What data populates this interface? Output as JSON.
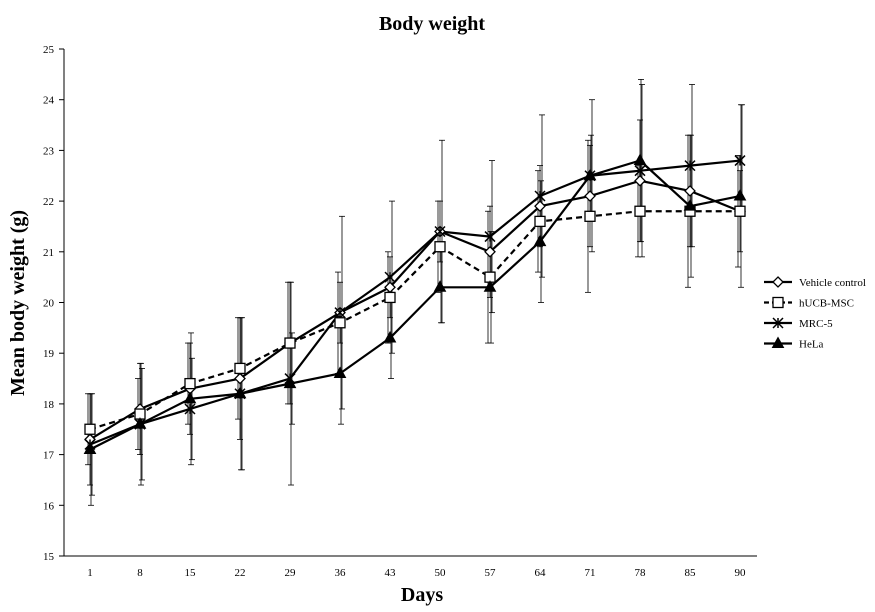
{
  "chart_data": {
    "type": "line",
    "title": "Body weight",
    "xlabel": "Days",
    "ylabel": "Mean body weight (g)",
    "categories": [
      "1",
      "8",
      "15",
      "22",
      "29",
      "36",
      "43",
      "50",
      "57",
      "64",
      "71",
      "78",
      "85",
      "90"
    ],
    "ylim": [
      15,
      25
    ],
    "yticks": [
      15,
      16,
      17,
      18,
      19,
      20,
      21,
      22,
      23,
      24,
      25
    ],
    "grid": false,
    "legend_position": "right",
    "series": [
      {
        "name": "Vehicle control",
        "marker": "diamond",
        "dash": "solid",
        "values": [
          17.3,
          17.9,
          18.3,
          18.5,
          19.2,
          19.8,
          20.3,
          21.4,
          21.0,
          21.9,
          22.1,
          22.4,
          22.2,
          21.8
        ],
        "errors": [
          0.9,
          0.9,
          0.9,
          1.2,
          1.2,
          0.6,
          0.6,
          0.6,
          0.9,
          0.8,
          1.0,
          1.2,
          1.1,
          0.8
        ]
      },
      {
        "name": "hUCB-MSC",
        "marker": "square",
        "dash": "dashed",
        "values": [
          17.5,
          17.8,
          18.4,
          18.7,
          19.2,
          19.6,
          20.1,
          21.1,
          20.5,
          21.6,
          21.7,
          21.8,
          21.8,
          21.8
        ],
        "errors": [
          0.7,
          0.7,
          0.8,
          1.0,
          1.2,
          1.0,
          0.9,
          0.9,
          1.3,
          1.0,
          1.5,
          0.9,
          1.5,
          1.1
        ]
      },
      {
        "name": "MRC-5",
        "marker": "star",
        "dash": "solid",
        "values": [
          17.2,
          17.6,
          17.9,
          18.2,
          18.5,
          19.8,
          20.5,
          21.4,
          21.3,
          22.1,
          22.5,
          22.6,
          22.7,
          22.8
        ],
        "errors": [
          1.0,
          1.1,
          1.0,
          1.5,
          0.9,
          1.9,
          1.5,
          1.8,
          1.5,
          1.6,
          1.5,
          1.7,
          1.6,
          1.1
        ]
      },
      {
        "name": "HeLa",
        "marker": "triangle",
        "dash": "solid",
        "values": [
          17.1,
          17.6,
          18.1,
          18.2,
          18.4,
          18.6,
          19.3,
          20.3,
          20.3,
          21.2,
          22.5,
          22.8,
          21.9,
          22.1
        ],
        "errors": [
          1.1,
          1.2,
          1.3,
          1.5,
          2.0,
          1.0,
          0.8,
          0.7,
          1.1,
          1.2,
          0.8,
          1.6,
          1.4,
          1.8
        ]
      }
    ]
  }
}
